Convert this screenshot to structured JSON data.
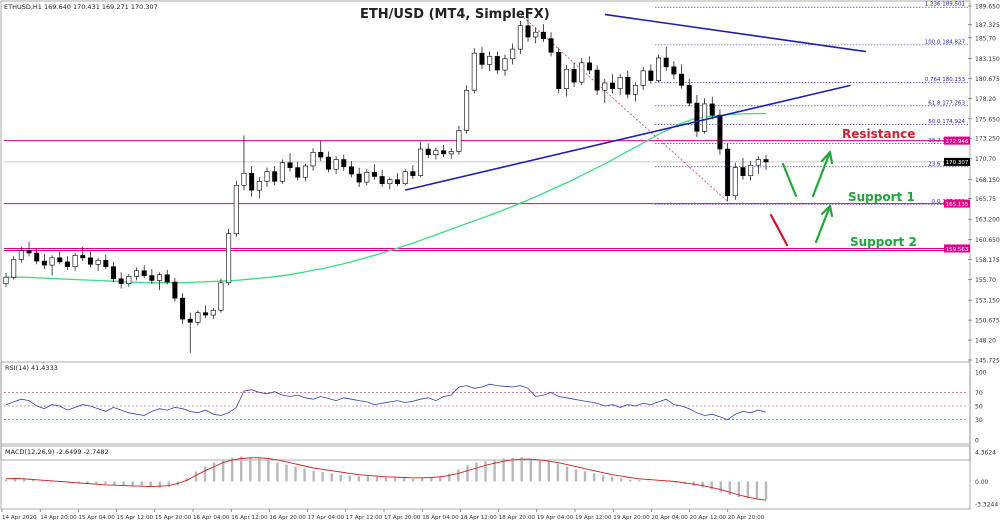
{
  "header": {
    "symbol_info": "ETHUSD,H1  169.640 170.431 169.271 170.307",
    "title": "ETH/USD (MT4, SimpleFX)"
  },
  "colors": {
    "up_candle": "#ffffff",
    "down_candle": "#000000",
    "ma": "#3ddc84",
    "trendline": "#1f1faa",
    "level": "#e0008a",
    "fib": "#1f1faa",
    "arrow_up": "#22a63a",
    "arrow_down": "#d0142c",
    "resistance_text": "#cc2233",
    "support_text": "#22a63a",
    "rsi": "#3040b0",
    "macd_hist": "#b8b8b8",
    "macd_signal": "#d02020"
  },
  "annotations": {
    "resistance": "Resistance",
    "support1": "Support 1",
    "support2": "Support 2"
  },
  "price_axis": {
    "ticks": [
      "189.650",
      "187.325",
      "185.70",
      "183.150",
      "180.675",
      "178.20",
      "175.650",
      "173.250",
      "170.70",
      "168.150",
      "165.75",
      "163.200",
      "160.650",
      "158.175",
      "155.70",
      "153.150",
      "150.675",
      "148.20",
      "145.725"
    ],
    "ylim": [
      145.725,
      189.65
    ],
    "current_price": "170.307",
    "resistance_level": "172.946",
    "support1_level": "165.135",
    "support2_level": "159.563"
  },
  "fib_levels": [
    {
      "label": "1.236  189.501",
      "value": 189.501
    },
    {
      "label": "100.0  184.827",
      "value": 184.827
    },
    {
      "label": "0.764  180.153",
      "value": 180.153
    },
    {
      "label": "61.8  177.263",
      "value": 177.263
    },
    {
      "label": "50.0  174.924",
      "value": 174.924
    },
    {
      "label": "38.2  172.585",
      "value": 172.585
    },
    {
      "label": "23.6  169.690",
      "value": 169.69
    },
    {
      "label": "0.0  165.021",
      "value": 165.021
    }
  ],
  "time_axis": [
    "14 Apr 2020",
    "14 Apr 20:00",
    "15 Apr 04:00",
    "15 Apr 12:00",
    "15 Apr 20:00",
    "16 Apr 04:00",
    "16 Apr 12:00",
    "16 Apr 20:00",
    "17 Apr 04:00",
    "17 Apr 12:00",
    "17 Apr 20:00",
    "18 Apr 04:00",
    "18 Apr 12:00",
    "18 Apr 20:00",
    "19 Apr 04:00",
    "19 Apr 12:00",
    "19 Apr 20:00",
    "20 Apr 04:00",
    "20 Apr 12:00",
    "20 Apr 20:00"
  ],
  "rsi": {
    "label": "RSI(14) 41.4333",
    "levels": [
      "100",
      "70",
      "50",
      "30",
      "0"
    ],
    "values": [
      52,
      56,
      60,
      58,
      50,
      46,
      52,
      50,
      44,
      48,
      52,
      50,
      46,
      42,
      48,
      44,
      40,
      38,
      36,
      42,
      46,
      44,
      48,
      46,
      42,
      40,
      44,
      38,
      36,
      40,
      48,
      72,
      74,
      70,
      68,
      71,
      66,
      64,
      66,
      62,
      60,
      64,
      61,
      58,
      62,
      60,
      58,
      56,
      52,
      54,
      56,
      58,
      55,
      57,
      60,
      62,
      58,
      64,
      66,
      78,
      80,
      76,
      78,
      82,
      80,
      79,
      78,
      80,
      76,
      64,
      66,
      70,
      64,
      62,
      60,
      58,
      56,
      54,
      50,
      52,
      48,
      52,
      50,
      54,
      52,
      56,
      60,
      52,
      50,
      46,
      40,
      36,
      38,
      34,
      30,
      38,
      42,
      40,
      44,
      41
    ]
  },
  "macd": {
    "label": "MACD(12,26,9) -2.6499 -2.7482",
    "ticks": [
      "4.3624",
      "0.00",
      "-3.3244"
    ],
    "ylim": [
      -3.3244,
      4.3624
    ],
    "hist": [
      0.3,
      0.5,
      0.4,
      0.2,
      0.1,
      0.0,
      -0.1,
      -0.2,
      -0.3,
      -0.35,
      -0.3,
      -0.4,
      -0.5,
      -0.6,
      -0.7,
      -0.6,
      -0.8,
      -0.9,
      -0.8,
      -0.6,
      0.5,
      1.5,
      2.2,
      2.8,
      3.2,
      3.5,
      3.7,
      3.6,
      3.5,
      3.2,
      2.8,
      2.5,
      2.2,
      1.9,
      1.6,
      1.4,
      1.2,
      1.0,
      0.9,
      0.8,
      0.8,
      0.7,
      0.6,
      0.6,
      0.5,
      0.4,
      0.5,
      0.6,
      0.8,
      1.2,
      1.8,
      2.4,
      2.8,
      3.0,
      3.2,
      3.4,
      3.5,
      3.6,
      3.4,
      3.2,
      3.0,
      2.6,
      2.2,
      1.8,
      1.5,
      1.2,
      0.9,
      0.7,
      0.5,
      0.3,
      0.2,
      0.1,
      0.0,
      -0.1,
      -0.2,
      -0.4,
      -0.6,
      -0.9,
      -1.2,
      -1.6,
      -2.0,
      -2.3,
      -2.5,
      -2.6,
      -2.65
    ],
    "signal": [
      0.4,
      0.45,
      0.4,
      0.3,
      0.2,
      0.1,
      0.0,
      -0.1,
      -0.2,
      -0.3,
      -0.4,
      -0.5,
      -0.55,
      -0.6,
      -0.65,
      -0.7,
      -0.75,
      -0.7,
      -0.6,
      -0.3,
      0.2,
      0.9,
      1.6,
      2.2,
      2.8,
      3.2,
      3.4,
      3.5,
      3.5,
      3.4,
      3.2,
      2.9,
      2.6,
      2.3,
      2.0,
      1.8,
      1.6,
      1.4,
      1.2,
      1.0,
      0.9,
      0.8,
      0.7,
      0.65,
      0.6,
      0.55,
      0.55,
      0.6,
      0.7,
      0.9,
      1.2,
      1.6,
      2.0,
      2.4,
      2.7,
      3.0,
      3.2,
      3.3,
      3.3,
      3.2,
      3.0,
      2.8,
      2.5,
      2.2,
      1.9,
      1.6,
      1.3,
      1.0,
      0.8,
      0.6,
      0.4,
      0.3,
      0.2,
      0.1,
      0.0,
      -0.2,
      -0.4,
      -0.6,
      -0.9,
      -1.2,
      -1.6,
      -2.0,
      -2.3,
      -2.6,
      -2.75
    ]
  },
  "chart_data": {
    "type": "candlestick",
    "title": "ETH/USD (MT4, SimpleFX)",
    "ylim": [
      145.725,
      189.65
    ],
    "ohlc": [
      [
        155.2,
        156.5,
        154.8,
        156.0
      ],
      [
        156.0,
        158.6,
        155.7,
        158.2
      ],
      [
        158.2,
        159.8,
        157.8,
        159.3
      ],
      [
        159.3,
        160.4,
        158.6,
        159.0
      ],
      [
        159.0,
        159.6,
        157.6,
        158.0
      ],
      [
        158.0,
        158.9,
        157.0,
        157.5
      ],
      [
        157.5,
        158.7,
        156.2,
        158.4
      ],
      [
        158.4,
        159.2,
        157.6,
        157.9
      ],
      [
        157.9,
        158.6,
        156.9,
        157.3
      ],
      [
        157.3,
        159.0,
        156.8,
        158.7
      ],
      [
        158.7,
        159.8,
        158.0,
        158.4
      ],
      [
        158.4,
        159.2,
        157.2,
        157.6
      ],
      [
        157.6,
        158.4,
        156.8,
        158.1
      ],
      [
        158.1,
        158.8,
        157.0,
        157.3
      ],
      [
        157.3,
        157.9,
        155.4,
        155.8
      ],
      [
        155.8,
        156.6,
        154.6,
        155.2
      ],
      [
        155.2,
        156.4,
        154.8,
        156.1
      ],
      [
        156.1,
        157.2,
        155.6,
        156.8
      ],
      [
        156.8,
        157.5,
        155.9,
        156.2
      ],
      [
        156.2,
        157.0,
        155.2,
        155.6
      ],
      [
        155.6,
        156.6,
        154.4,
        156.3
      ],
      [
        156.3,
        156.9,
        155.1,
        155.4
      ],
      [
        155.4,
        155.9,
        153.0,
        153.4
      ],
      [
        153.4,
        154.0,
        150.2,
        150.8
      ],
      [
        150.8,
        151.6,
        146.6,
        150.4
      ],
      [
        150.4,
        151.9,
        150.0,
        151.6
      ],
      [
        151.6,
        152.5,
        150.9,
        151.3
      ],
      [
        151.3,
        152.2,
        150.8,
        151.9
      ],
      [
        151.9,
        155.8,
        151.6,
        155.3
      ],
      [
        155.3,
        162.0,
        155.0,
        161.4
      ],
      [
        161.4,
        168.0,
        161.0,
        167.4
      ],
      [
        167.4,
        173.6,
        166.8,
        168.9
      ],
      [
        168.9,
        169.8,
        166.0,
        166.8
      ],
      [
        166.8,
        168.4,
        165.8,
        167.9
      ],
      [
        167.9,
        169.6,
        167.2,
        169.1
      ],
      [
        169.1,
        169.8,
        167.4,
        167.9
      ],
      [
        167.9,
        170.6,
        167.6,
        170.2
      ],
      [
        170.2,
        171.4,
        169.1,
        169.6
      ],
      [
        169.6,
        170.3,
        168.0,
        168.4
      ],
      [
        168.4,
        170.1,
        167.9,
        169.8
      ],
      [
        169.8,
        172.0,
        169.2,
        171.5
      ],
      [
        171.5,
        172.9,
        170.4,
        170.9
      ],
      [
        170.9,
        171.6,
        169.0,
        169.4
      ],
      [
        169.4,
        171.0,
        168.8,
        170.6
      ],
      [
        170.6,
        171.2,
        169.2,
        169.7
      ],
      [
        169.7,
        170.4,
        168.4,
        168.8
      ],
      [
        168.8,
        169.6,
        167.2,
        167.8
      ],
      [
        167.8,
        169.4,
        167.4,
        169.0
      ],
      [
        169.0,
        170.0,
        168.1,
        168.5
      ],
      [
        168.5,
        169.3,
        167.2,
        167.6
      ],
      [
        167.6,
        168.4,
        166.9,
        168.1
      ],
      [
        168.1,
        168.9,
        167.3,
        167.6
      ],
      [
        167.6,
        169.4,
        167.4,
        169.1
      ],
      [
        169.1,
        169.9,
        168.2,
        168.6
      ],
      [
        168.6,
        172.8,
        168.4,
        171.9
      ],
      [
        171.9,
        172.6,
        170.8,
        171.2
      ],
      [
        171.2,
        172.1,
        170.6,
        171.7
      ],
      [
        171.7,
        172.4,
        170.9,
        171.3
      ],
      [
        171.3,
        172.0,
        170.7,
        171.6
      ],
      [
        171.6,
        174.8,
        171.2,
        174.2
      ],
      [
        174.2,
        179.8,
        173.8,
        179.2
      ],
      [
        179.2,
        184.4,
        178.8,
        183.8
      ],
      [
        183.8,
        184.6,
        181.8,
        182.4
      ],
      [
        182.4,
        184.0,
        181.6,
        183.4
      ],
      [
        183.4,
        184.0,
        181.2,
        181.7
      ],
      [
        181.7,
        183.6,
        181.0,
        183.1
      ],
      [
        183.1,
        185.0,
        182.4,
        184.3
      ],
      [
        184.3,
        187.8,
        183.7,
        187.2
      ],
      [
        187.2,
        188.6,
        185.2,
        185.8
      ],
      [
        185.8,
        187.0,
        185.0,
        186.4
      ],
      [
        186.4,
        187.4,
        185.2,
        185.6
      ],
      [
        185.6,
        186.4,
        183.4,
        183.9
      ],
      [
        183.9,
        184.5,
        178.8,
        179.4
      ],
      [
        179.4,
        182.3,
        178.4,
        181.8
      ],
      [
        181.8,
        182.6,
        179.6,
        180.2
      ],
      [
        180.2,
        183.2,
        179.8,
        182.6
      ],
      [
        182.6,
        183.4,
        181.2,
        181.7
      ],
      [
        181.7,
        182.3,
        178.6,
        179.2
      ],
      [
        179.2,
        180.6,
        177.6,
        180.1
      ],
      [
        180.1,
        181.2,
        178.8,
        179.4
      ],
      [
        179.4,
        181.2,
        178.6,
        180.8
      ],
      [
        180.8,
        181.6,
        178.2,
        178.7
      ],
      [
        178.7,
        180.2,
        177.8,
        179.8
      ],
      [
        179.8,
        182.1,
        179.2,
        181.6
      ],
      [
        181.6,
        182.4,
        180.0,
        180.4
      ],
      [
        180.4,
        183.6,
        180.2,
        183.2
      ],
      [
        183.2,
        184.6,
        181.6,
        182.1
      ],
      [
        182.1,
        182.8,
        180.6,
        181.2
      ],
      [
        181.2,
        182.4,
        179.4,
        179.8
      ],
      [
        179.8,
        180.6,
        177.2,
        177.6
      ],
      [
        177.6,
        178.6,
        173.4,
        174.1
      ],
      [
        174.1,
        178.2,
        173.8,
        177.5
      ],
      [
        177.5,
        178.4,
        175.6,
        176.1
      ],
      [
        176.1,
        176.8,
        171.2,
        171.9
      ],
      [
        171.9,
        172.6,
        165.4,
        166.1
      ],
      [
        166.1,
        170.2,
        165.6,
        169.6
      ],
      [
        169.6,
        170.8,
        168.1,
        168.6
      ],
      [
        168.6,
        170.4,
        168.0,
        169.9
      ],
      [
        169.9,
        171.0,
        168.8,
        170.6
      ],
      [
        170.6,
        171.2,
        169.3,
        170.3
      ]
    ],
    "moving_average": [
      156.0,
      156.0,
      155.9,
      155.8,
      155.7,
      155.6,
      155.5,
      155.4,
      155.3,
      155.3,
      155.3,
      155.4,
      155.5,
      155.6,
      155.8,
      156.0,
      156.3,
      156.7,
      157.1,
      157.6,
      158.2,
      158.8,
      159.5,
      160.2,
      161.0,
      161.8,
      162.6,
      163.4,
      164.2,
      165.1,
      166.0,
      167.0,
      168.0,
      169.1,
      170.2,
      171.4,
      172.6,
      173.8,
      174.9,
      175.7,
      176.0,
      176.2,
      176.3,
      176.3
    ],
    "trendlines": [
      {
        "name": "descending",
        "points": [
          [
            78,
            188.6
          ],
          [
            112,
            184.0
          ]
        ]
      },
      {
        "name": "ascending",
        "points": [
          [
            52,
            166.8
          ],
          [
            110,
            179.8
          ]
        ]
      }
    ]
  }
}
